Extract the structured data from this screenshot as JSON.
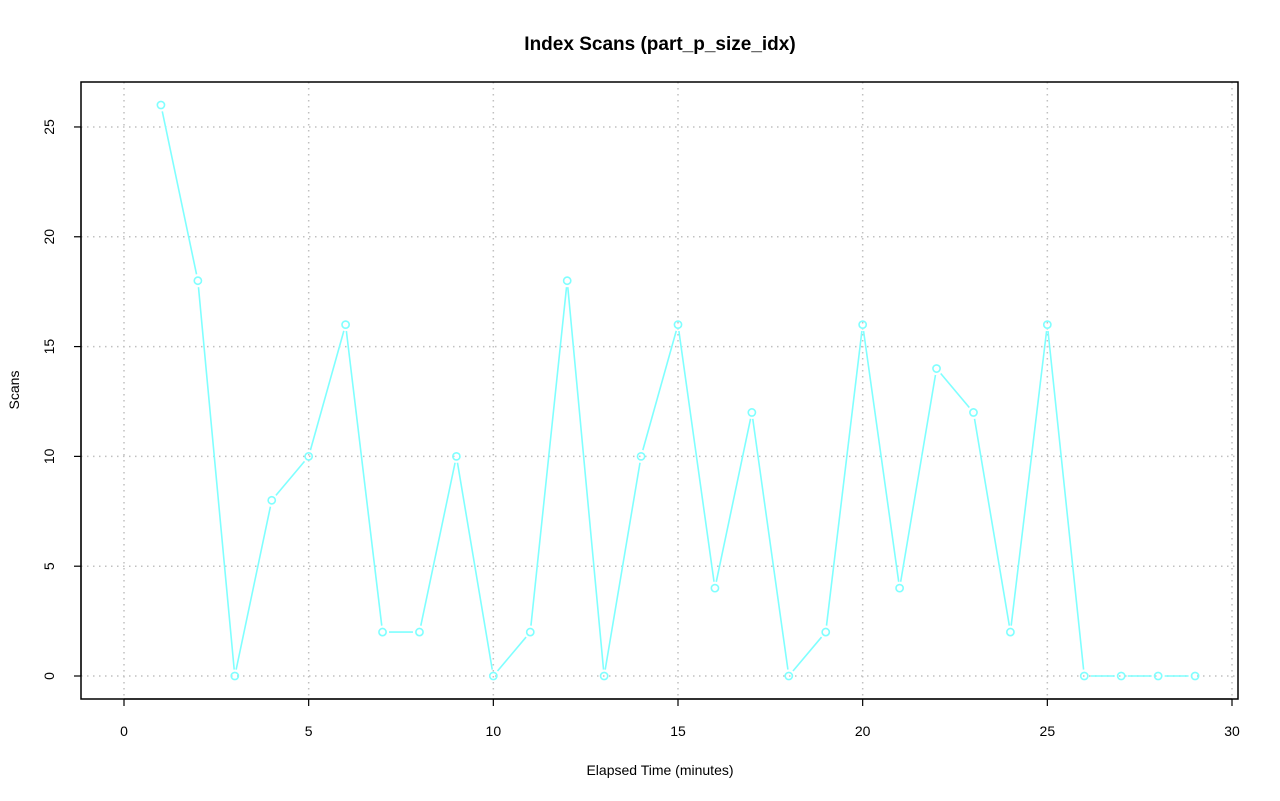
{
  "chart_data": {
    "type": "line",
    "title": "Index Scans (part_p_size_idx)",
    "xlabel": "Elapsed Time (minutes)",
    "ylabel": "Scans",
    "xlim": [
      0,
      30
    ],
    "ylim": [
      0,
      26
    ],
    "x_ticks": [
      0,
      5,
      10,
      15,
      20,
      25,
      30
    ],
    "y_ticks": [
      0,
      5,
      10,
      15,
      20,
      25
    ],
    "grid": true,
    "legend": "none",
    "color": "#7fffff",
    "x": [
      1,
      2,
      3,
      4,
      5,
      6,
      7,
      8,
      9,
      10,
      11,
      12,
      13,
      14,
      15,
      16,
      17,
      18,
      19,
      20,
      21,
      22,
      23,
      24,
      25,
      26,
      27,
      28,
      29
    ],
    "y": [
      26,
      18,
      0,
      8,
      10,
      16,
      2,
      2,
      10,
      0,
      2,
      18,
      0,
      10,
      16,
      4,
      12,
      0,
      2,
      16,
      4,
      14,
      12,
      2,
      16,
      0,
      0,
      0,
      0
    ]
  }
}
